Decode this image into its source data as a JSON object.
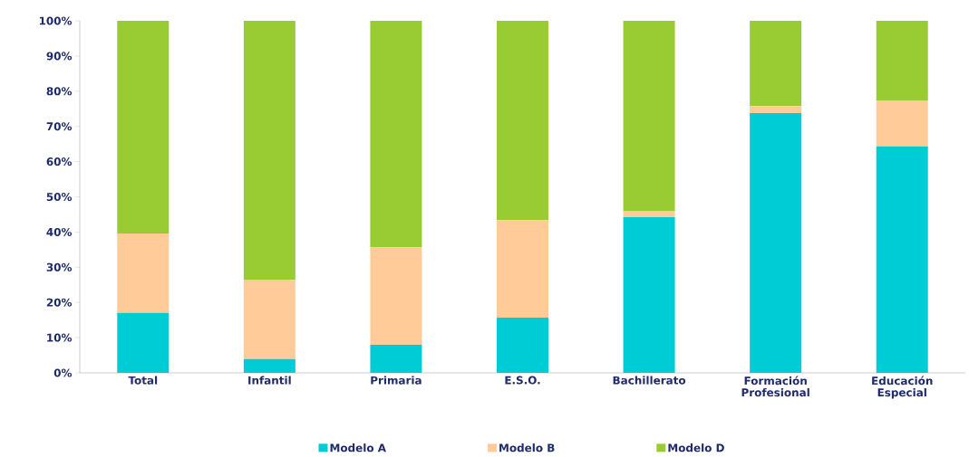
{
  "chart_data": {
    "type": "bar",
    "stacked": true,
    "categories": [
      "Total",
      "Infantil",
      "Primaria",
      "E.S.O.",
      "Bachillerato",
      "Formación Profesional",
      "Educación Especial"
    ],
    "series": [
      {
        "name": "Modelo A",
        "color": "#00ccd6",
        "values": [
          17.0,
          3.9,
          8.0,
          15.7,
          44.2,
          73.8,
          64.3
        ]
      },
      {
        "name": "Modelo B",
        "color": "#ffcc99",
        "values": [
          22.6,
          22.6,
          27.7,
          27.7,
          1.8,
          2.0,
          13.1
        ]
      },
      {
        "name": "Modelo D",
        "color": "#99cc33",
        "values": [
          60.4,
          73.5,
          64.3,
          56.6,
          54.0,
          24.2,
          22.6
        ]
      }
    ],
    "ylim": [
      0,
      100
    ],
    "yticks": [
      {
        "value": 0,
        "label": "0%"
      },
      {
        "value": 10,
        "label": "10%"
      },
      {
        "value": 20,
        "label": "20%"
      },
      {
        "value": 30,
        "label": "30%"
      },
      {
        "value": 40,
        "label": "40%"
      },
      {
        "value": 50,
        "label": "50%"
      },
      {
        "value": 60,
        "label": "60%"
      },
      {
        "value": 70,
        "label": "70%"
      },
      {
        "value": 80,
        "label": "80%"
      },
      {
        "value": 90,
        "label": "90%"
      },
      {
        "value": 100,
        "label": "100%"
      }
    ],
    "legend": "bottom"
  }
}
